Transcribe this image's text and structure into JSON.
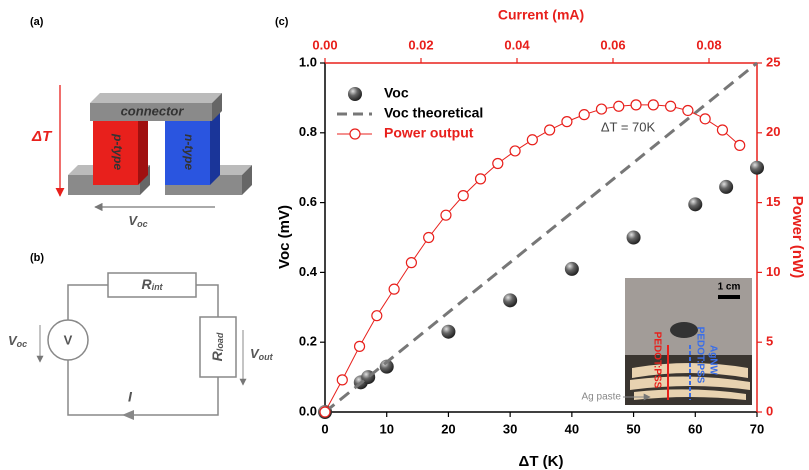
{
  "panel_a": {
    "label": "(a)",
    "connector": "connector",
    "p_type": "p-type",
    "n_type": "n-type",
    "delta_t": "ΔT",
    "voltage": {
      "main": "V",
      "sub": "oc"
    }
  },
  "panel_b": {
    "label": "(b)",
    "r_int": {
      "main": "R",
      "sub": "int"
    },
    "r_load": {
      "main": "R",
      "sub": "load"
    },
    "v_oc": {
      "main": "V",
      "sub": "oc"
    },
    "v_out": {
      "main": "V",
      "sub": "out"
    },
    "meter": "V",
    "current": "I"
  },
  "chart_data": {
    "type": "scatter",
    "panel_label": "(c)",
    "xlabel": "ΔT (K)",
    "ylabel": "Voc (mV)",
    "y2label": "Power (nW)",
    "x2label": "Current (mA)",
    "xlim": [
      0,
      70
    ],
    "xticks": [
      0,
      10,
      20,
      30,
      40,
      50,
      60,
      70
    ],
    "x2lim": [
      0,
      0.09
    ],
    "x2ticks": [
      {
        "value": 0,
        "label": "0.00"
      },
      {
        "value": 0.02,
        "label": "0.02"
      },
      {
        "value": 0.04,
        "label": "0.04"
      },
      {
        "value": 0.06,
        "label": "0.06"
      },
      {
        "value": 0.08,
        "label": "0.08"
      }
    ],
    "ylim": [
      0,
      1
    ],
    "yticks": [
      {
        "value": 0,
        "label": "0.0"
      },
      {
        "value": 0.2,
        "label": "0.2"
      },
      {
        "value": 0.4,
        "label": "0.4"
      },
      {
        "value": 0.6,
        "label": "0.6"
      },
      {
        "value": 0.8,
        "label": "0.8"
      },
      {
        "value": 1,
        "label": "1.0"
      }
    ],
    "y2lim": [
      0,
      25
    ],
    "y2ticks": [
      0,
      5,
      10,
      15,
      20,
      25
    ],
    "secondary_color": "#e8201c",
    "series": [
      {
        "name": "Voc",
        "type": "scatter",
        "color": "#555555",
        "x": [
          0,
          5.8,
          7,
          10,
          20,
          30,
          40,
          50,
          60,
          65,
          70
        ],
        "values": [
          0,
          0.085,
          0.1,
          0.13,
          0.23,
          0.32,
          0.41,
          0.5,
          0.595,
          0.645,
          0.7
        ]
      },
      {
        "name": "Voc theoretical",
        "type": "line",
        "dash": true,
        "color": "#777777",
        "x": [
          0,
          70
        ],
        "values": [
          0,
          1
        ]
      },
      {
        "name": "Power output",
        "type": "line",
        "marker": true,
        "axis": "y2",
        "xaxis": "x2",
        "color": "#e8201c",
        "x": [
          0,
          0.0036,
          0.0072,
          0.0108,
          0.0144,
          0.018,
          0.0216,
          0.0252,
          0.0288,
          0.0324,
          0.036,
          0.0396,
          0.0432,
          0.0468,
          0.0504,
          0.054,
          0.0576,
          0.0612,
          0.0648,
          0.0684,
          0.072,
          0.0756,
          0.0792,
          0.0828,
          0.0864
        ],
        "values": [
          0,
          2.3,
          4.7,
          6.9,
          8.8,
          10.7,
          12.5,
          14.1,
          15.5,
          16.7,
          17.8,
          18.7,
          19.5,
          20.2,
          20.8,
          21.3,
          21.7,
          21.9,
          22.0,
          22.0,
          21.9,
          21.6,
          21.0,
          20.2,
          19.1
        ]
      }
    ],
    "annotations": [
      "ΔT = 70K",
      "1 cm",
      "PEDOT:PSS",
      "PEDOT:PSS",
      "AgNW",
      "Ag paste"
    ]
  }
}
